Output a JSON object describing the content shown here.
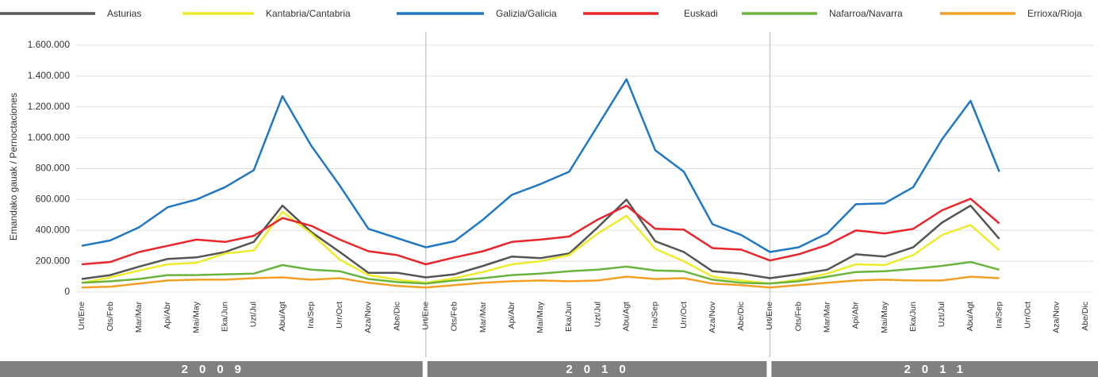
{
  "chart_data": {
    "type": "line",
    "y_label": "Emandako gauak / Pernoctaciones",
    "categories": [
      "Urt/Ene",
      "Ots/Feb",
      "Mar/Mar",
      "Api/Abr",
      "Mai/May",
      "Eka/Jun",
      "Uzt/Jul",
      "Abu/Agt",
      "Ira/Sep",
      "Urr/Oct",
      "Aza/Nov",
      "Abe/Dic",
      "Urt/Ene",
      "Ots/Feb",
      "Mar/Mar",
      "Api/Abr",
      "Mai/May",
      "Eka/Jun",
      "Uzt/Jul",
      "Abu/Agt",
      "Ira/Sep",
      "Urr/Oct",
      "Aza/Nov",
      "Abe/Dic",
      "Urt/Ene",
      "Ots/Feb",
      "Mar/Mar",
      "Api/Abr",
      "Mai/May",
      "Eka/Jun",
      "Uzt/Jul",
      "Abu/Agt",
      "Ira/Sep",
      "Urr/Oct",
      "Aza/Nov",
      "Abe/Dic"
    ],
    "years": [
      "2009",
      "2010",
      "2011"
    ],
    "series": [
      {
        "name": "Asturias",
        "color": "#555555",
        "values": [
          85000,
          110000,
          165000,
          215000,
          225000,
          260000,
          325000,
          560000,
          390000,
          260000,
          125000,
          125000,
          95000,
          115000,
          170000,
          230000,
          220000,
          250000,
          420000,
          600000,
          330000,
          260000,
          135000,
          120000,
          90000,
          115000,
          145000,
          245000,
          230000,
          290000,
          450000,
          560000,
          345000,
          null,
          null,
          null
        ]
      },
      {
        "name": "Kantabria/Cantabria",
        "color": "#ecec2c",
        "values": [
          60000,
          95000,
          140000,
          180000,
          190000,
          250000,
          270000,
          520000,
          380000,
          210000,
          110000,
          80000,
          60000,
          90000,
          130000,
          180000,
          200000,
          240000,
          380000,
          495000,
          280000,
          200000,
          100000,
          75000,
          55000,
          80000,
          120000,
          180000,
          175000,
          240000,
          370000,
          435000,
          270000,
          null,
          null,
          null
        ]
      },
      {
        "name": "Galizia/Galicia",
        "color": "#1f78c1",
        "values": [
          300000,
          335000,
          420000,
          550000,
          600000,
          680000,
          790000,
          1270000,
          950000,
          690000,
          410000,
          350000,
          290000,
          330000,
          470000,
          630000,
          700000,
          780000,
          1080000,
          1380000,
          920000,
          780000,
          440000,
          370000,
          260000,
          290000,
          380000,
          570000,
          575000,
          680000,
          990000,
          1240000,
          780000,
          null,
          null,
          null
        ]
      },
      {
        "name": "Euskadi",
        "color": "#e8262b",
        "values": [
          180000,
          195000,
          260000,
          300000,
          340000,
          325000,
          365000,
          480000,
          430000,
          340000,
          265000,
          240000,
          180000,
          225000,
          265000,
          325000,
          340000,
          360000,
          470000,
          560000,
          410000,
          405000,
          285000,
          275000,
          205000,
          245000,
          305000,
          400000,
          380000,
          410000,
          530000,
          605000,
          445000,
          null,
          null,
          null
        ]
      },
      {
        "name": "Nafarroa/Navarra",
        "color": "#6ab43e",
        "values": [
          60000,
          70000,
          85000,
          110000,
          110000,
          115000,
          120000,
          175000,
          145000,
          135000,
          85000,
          65000,
          55000,
          75000,
          90000,
          110000,
          120000,
          135000,
          145000,
          165000,
          140000,
          135000,
          80000,
          60000,
          55000,
          70000,
          100000,
          130000,
          135000,
          150000,
          170000,
          195000,
          145000,
          null,
          null,
          null
        ]
      },
      {
        "name": "Errioxa/Rioja",
        "color": "#f0a024",
        "values": [
          30000,
          35000,
          55000,
          75000,
          80000,
          80000,
          90000,
          95000,
          80000,
          90000,
          60000,
          40000,
          30000,
          45000,
          60000,
          70000,
          75000,
          70000,
          75000,
          100000,
          85000,
          90000,
          55000,
          45000,
          30000,
          45000,
          60000,
          75000,
          80000,
          75000,
          75000,
          100000,
          90000,
          null,
          null,
          null
        ]
      }
    ],
    "ylim": [
      0,
      1600000
    ],
    "yticks": [
      0,
      {
        "value": 200000,
        "label": "200.000"
      },
      {
        "value": 400000,
        "label": "400.000"
      },
      {
        "value": 600000,
        "label": "600.000"
      },
      {
        "value": 800000,
        "label": "800.000"
      },
      {
        "value": 1000000,
        "label": "1.000.000"
      },
      {
        "value": 1200000,
        "label": "1.200.000"
      },
      {
        "value": 1400000,
        "label": "1.400.000"
      },
      {
        "value": 1600000,
        "label": "1.600.000"
      }
    ],
    "grid": true
  }
}
